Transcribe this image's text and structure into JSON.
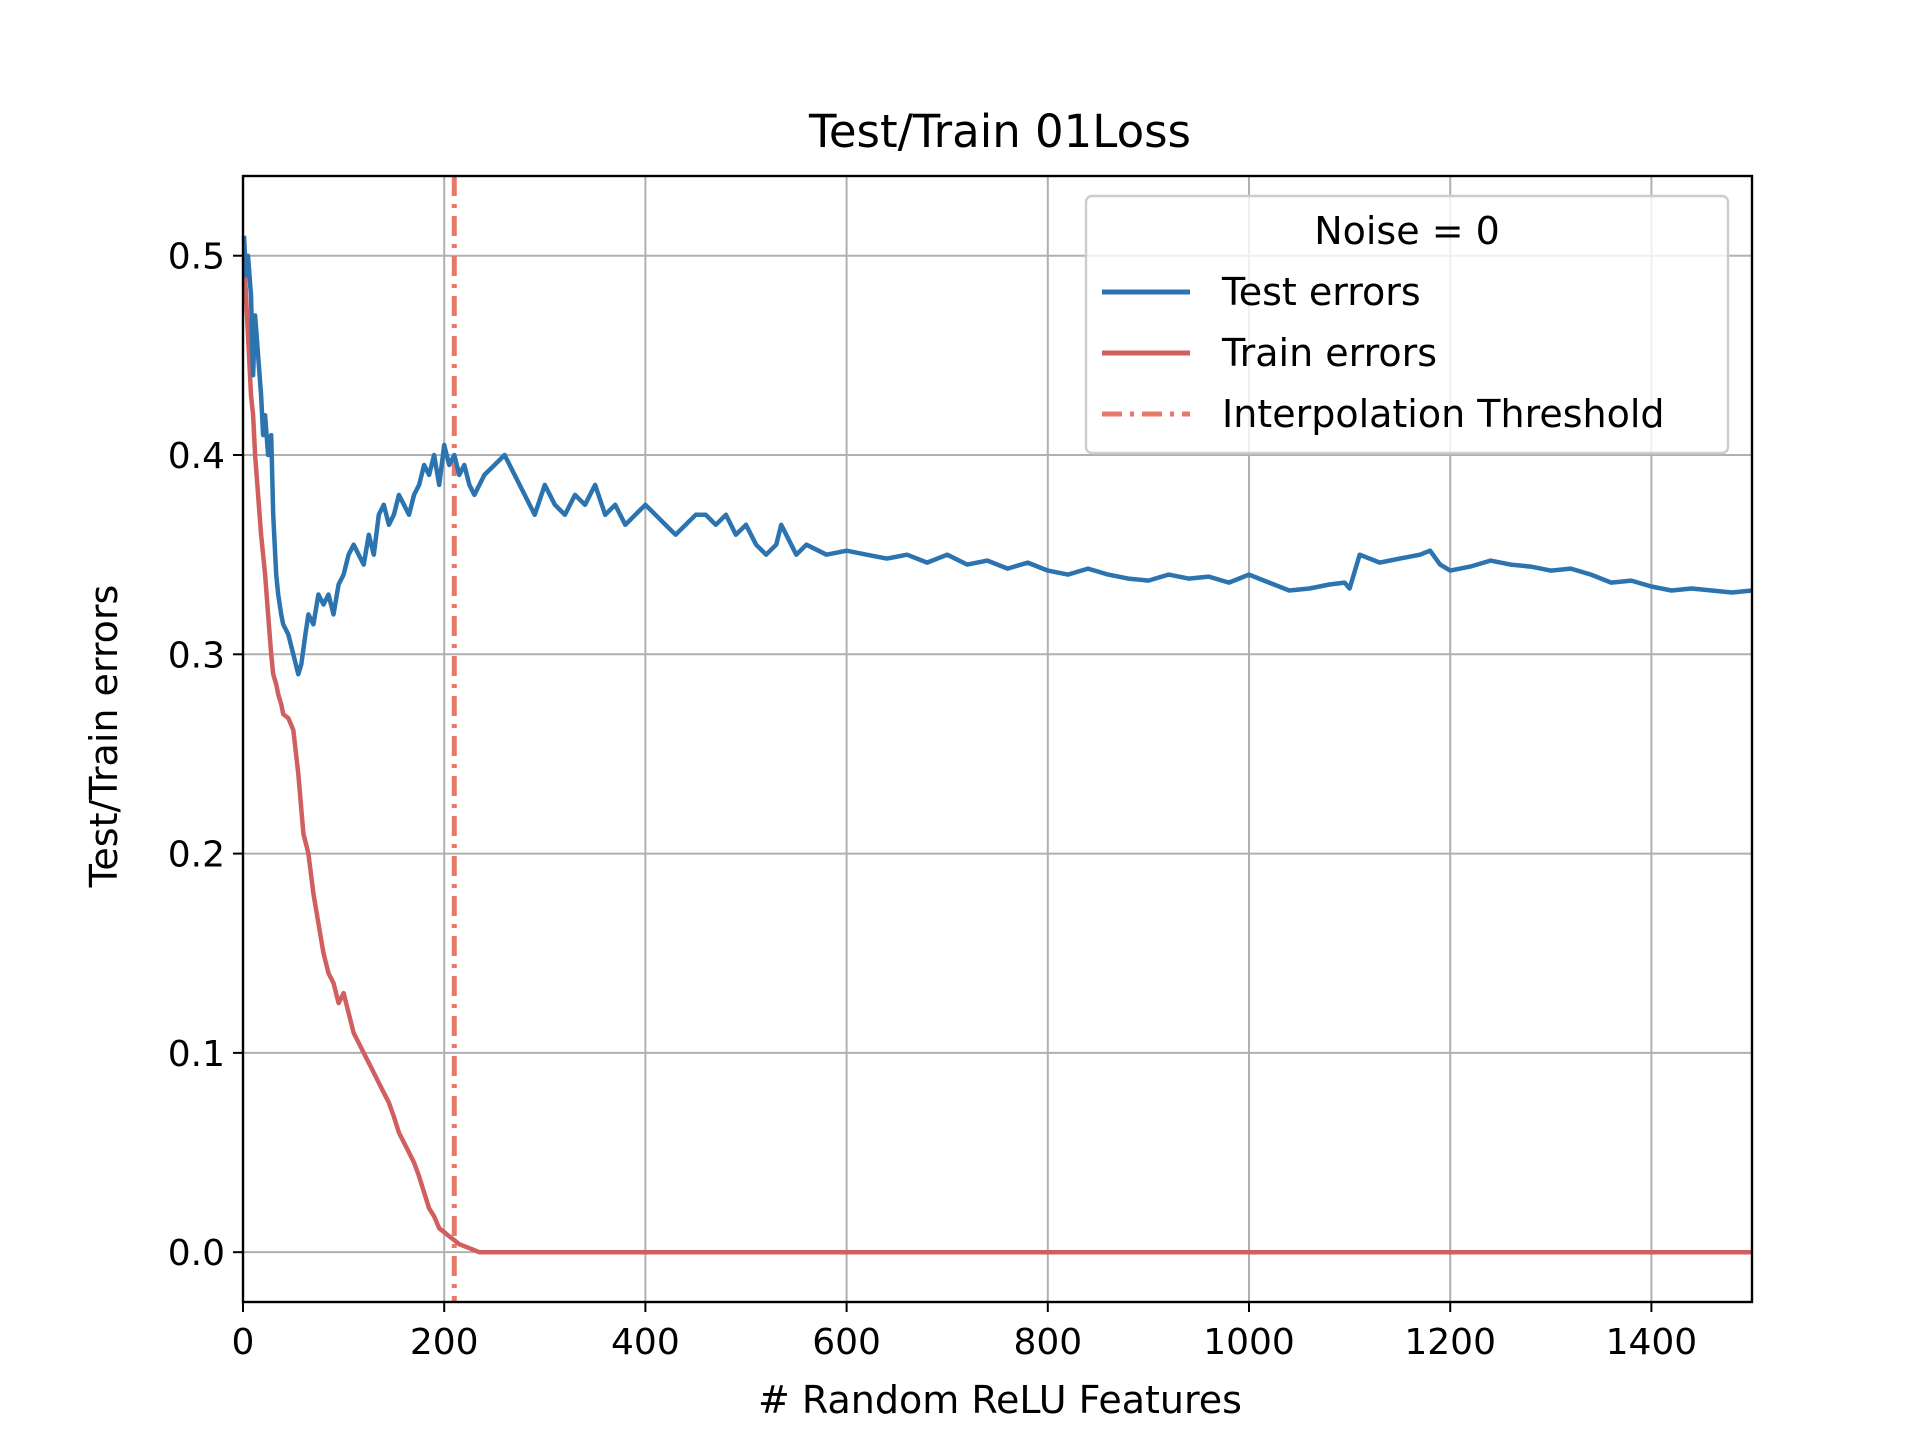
{
  "chart_data": {
    "type": "line",
    "title": "Test/Train 01Loss",
    "xlabel": "# Random ReLU Features",
    "ylabel": "Test/Train errors",
    "xlim": [
      0,
      1500
    ],
    "ylim": [
      -0.025,
      0.54
    ],
    "xticks": [
      0,
      200,
      400,
      600,
      800,
      1000,
      1200,
      1400
    ],
    "xtick_labels": [
      "0",
      "200",
      "400",
      "600",
      "800",
      "1000",
      "1200",
      "1400"
    ],
    "yticks": [
      0.0,
      0.1,
      0.2,
      0.3,
      0.4,
      0.5
    ],
    "ytick_labels": [
      "0.0",
      "0.1",
      "0.2",
      "0.3",
      "0.4",
      "0.5"
    ],
    "grid": true,
    "legend": {
      "title": "Noise = 0",
      "placement": "upper-right",
      "entries": [
        "Test errors",
        "Train errors",
        "Interpolation Threshold"
      ]
    },
    "vline": {
      "name": "Interpolation Threshold",
      "x": 210,
      "color": "#e8786a",
      "style": "dashdot"
    },
    "series": [
      {
        "name": "Test errors",
        "color": "#2c74b0",
        "x": [
          1,
          3,
          5,
          8,
          10,
          12,
          15,
          18,
          20,
          22,
          25,
          28,
          30,
          33,
          35,
          38,
          40,
          45,
          50,
          55,
          58,
          62,
          65,
          70,
          75,
          80,
          85,
          90,
          95,
          100,
          105,
          110,
          115,
          120,
          125,
          130,
          135,
          140,
          145,
          150,
          155,
          160,
          165,
          170,
          175,
          180,
          185,
          190,
          195,
          200,
          205,
          210,
          215,
          220,
          225,
          230,
          240,
          250,
          260,
          270,
          280,
          290,
          300,
          310,
          320,
          330,
          340,
          350,
          360,
          370,
          380,
          390,
          400,
          410,
          420,
          430,
          440,
          450,
          460,
          470,
          480,
          490,
          500,
          510,
          520,
          530,
          535,
          540,
          550,
          560,
          580,
          600,
          620,
          640,
          660,
          680,
          700,
          720,
          740,
          760,
          780,
          800,
          820,
          840,
          860,
          880,
          900,
          920,
          940,
          960,
          980,
          1000,
          1020,
          1040,
          1060,
          1080,
          1095,
          1100,
          1110,
          1130,
          1150,
          1170,
          1180,
          1190,
          1200,
          1220,
          1240,
          1260,
          1280,
          1300,
          1320,
          1340,
          1350,
          1360,
          1380,
          1400,
          1420,
          1440,
          1460,
          1480,
          1500
        ],
        "values": [
          0.51,
          0.49,
          0.5,
          0.48,
          0.44,
          0.47,
          0.45,
          0.43,
          0.41,
          0.42,
          0.4,
          0.41,
          0.37,
          0.34,
          0.33,
          0.32,
          0.315,
          0.31,
          0.3,
          0.29,
          0.295,
          0.31,
          0.32,
          0.315,
          0.33,
          0.325,
          0.33,
          0.32,
          0.335,
          0.34,
          0.35,
          0.355,
          0.35,
          0.345,
          0.36,
          0.35,
          0.37,
          0.375,
          0.365,
          0.37,
          0.38,
          0.375,
          0.37,
          0.38,
          0.385,
          0.395,
          0.39,
          0.4,
          0.385,
          0.405,
          0.395,
          0.4,
          0.39,
          0.395,
          0.385,
          0.38,
          0.39,
          0.395,
          0.4,
          0.39,
          0.38,
          0.37,
          0.385,
          0.375,
          0.37,
          0.38,
          0.375,
          0.385,
          0.37,
          0.375,
          0.365,
          0.37,
          0.375,
          0.37,
          0.365,
          0.36,
          0.365,
          0.37,
          0.37,
          0.365,
          0.37,
          0.36,
          0.365,
          0.355,
          0.35,
          0.355,
          0.365,
          0.36,
          0.35,
          0.355,
          0.35,
          0.352,
          0.35,
          0.348,
          0.35,
          0.346,
          0.35,
          0.345,
          0.347,
          0.343,
          0.346,
          0.342,
          0.34,
          0.343,
          0.34,
          0.338,
          0.337,
          0.34,
          0.338,
          0.339,
          0.336,
          0.34,
          0.336,
          0.332,
          0.333,
          0.335,
          0.336,
          0.333,
          0.35,
          0.346,
          0.348,
          0.35,
          0.352,
          0.345,
          0.342,
          0.344,
          0.347,
          0.345,
          0.344,
          0.342,
          0.343,
          0.34,
          0.338,
          0.336,
          0.337,
          0.334,
          0.332,
          0.333,
          0.332,
          0.331,
          0.332
        ]
      },
      {
        "name": "Train errors",
        "color": "#d15f5f",
        "x": [
          1,
          3,
          5,
          8,
          10,
          12,
          15,
          18,
          20,
          22,
          25,
          28,
          30,
          33,
          35,
          38,
          40,
          45,
          50,
          55,
          60,
          65,
          70,
          75,
          80,
          85,
          90,
          95,
          100,
          105,
          110,
          115,
          120,
          125,
          130,
          135,
          140,
          145,
          150,
          155,
          160,
          165,
          170,
          175,
          180,
          185,
          190,
          195,
          200,
          205,
          210,
          215,
          220,
          225,
          230,
          235,
          240,
          250,
          300,
          400,
          500,
          600,
          700,
          800,
          900,
          1000,
          1100,
          1200,
          1300,
          1400,
          1500
        ],
        "values": [
          0.5,
          0.48,
          0.46,
          0.43,
          0.42,
          0.4,
          0.38,
          0.36,
          0.35,
          0.34,
          0.32,
          0.3,
          0.29,
          0.285,
          0.28,
          0.275,
          0.27,
          0.268,
          0.262,
          0.24,
          0.21,
          0.2,
          0.18,
          0.165,
          0.15,
          0.14,
          0.135,
          0.125,
          0.13,
          0.12,
          0.11,
          0.105,
          0.1,
          0.095,
          0.09,
          0.085,
          0.08,
          0.075,
          0.068,
          0.06,
          0.055,
          0.05,
          0.045,
          0.038,
          0.03,
          0.022,
          0.018,
          0.012,
          0.01,
          0.008,
          0.006,
          0.004,
          0.003,
          0.002,
          0.001,
          0.0,
          0.0,
          0.0,
          0.0,
          0.0,
          0.0,
          0.0,
          0.0,
          0.0,
          0.0,
          0.0,
          0.0,
          0.0,
          0.0,
          0.0,
          0.0
        ]
      }
    ]
  }
}
